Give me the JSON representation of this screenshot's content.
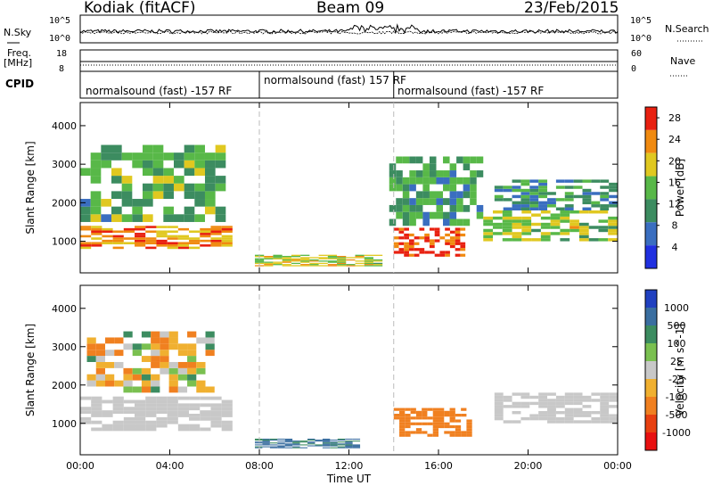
{
  "header": {
    "station": "Kodiak (fitACF)",
    "beam": "Beam 09",
    "date": "23/Feb/2015"
  },
  "strip_panels": {
    "nsky_label": "N.Sky",
    "nsearch_label": "N.Search",
    "freq_label_1": "Freq.",
    "freq_label_2": "[MHz]",
    "nave_label": "Nave",
    "cpid_label": "CPID",
    "nsky_ticks": [
      "10^5",
      "10^0"
    ],
    "nsearch_ticks": [
      "10^5",
      "10^0"
    ],
    "freq_ticks": [
      "18",
      "8"
    ],
    "nave_ticks": [
      "60",
      "0"
    ],
    "cpid_segments": [
      {
        "start_hour": 0,
        "end_hour": 8,
        "text": "normalsound (fast) -157 RF"
      },
      {
        "start_hour": 8,
        "end_hour": 14,
        "text": "normalsound (fast) 157 RF"
      },
      {
        "start_hour": 14,
        "end_hour": 24,
        "text": "normalsound (fast) -157 RF"
      }
    ]
  },
  "chart_data": [
    {
      "type": "heatmap",
      "title": "",
      "xlabel": "Time UT",
      "ylabel": "Slant Range [km]",
      "xlim": [
        0,
        24
      ],
      "ylim": [
        180,
        4600
      ],
      "x_ticks": [
        "00:00",
        "04:00",
        "08:00",
        "12:00",
        "16:00",
        "20:00",
        "00:00"
      ],
      "y_ticks": [
        1000,
        2000,
        3000,
        4000
      ],
      "colorbar_label": "Power [dB]",
      "colorbar_ticks": [
        4,
        8,
        12,
        16,
        20,
        24,
        28
      ],
      "colorbar_range": [
        0,
        30
      ],
      "colors": [
        "#2030e0",
        "#3a6ec0",
        "#3c8c60",
        "#58b848",
        "#e0c820",
        "#f08a10",
        "#e82010"
      ],
      "regions": [
        {
          "name": "morning-band",
          "t0": 0.0,
          "t1": 6.8,
          "r0": 800,
          "r1": 1400,
          "level": 0.75
        },
        {
          "name": "morning-upper",
          "t0": 0.0,
          "t1": 6.5,
          "r0": 1500,
          "r1": 3500,
          "level": 0.45
        },
        {
          "name": "low-evening",
          "t0": 7.8,
          "t1": 13.5,
          "r0": 350,
          "r1": 650,
          "level": 0.6
        },
        {
          "name": "afternoon-core",
          "t0": 14.0,
          "t1": 17.2,
          "r0": 600,
          "r1": 1350,
          "level": 0.9
        },
        {
          "name": "afternoon-upper",
          "t0": 13.8,
          "t1": 18.0,
          "r0": 1400,
          "r1": 3200,
          "level": 0.4
        },
        {
          "name": "evening-band",
          "t0": 18.0,
          "t1": 24.0,
          "r0": 1000,
          "r1": 1800,
          "level": 0.55
        },
        {
          "name": "evening-upper",
          "t0": 18.5,
          "t1": 24.0,
          "r0": 1800,
          "r1": 2600,
          "level": 0.35
        }
      ]
    },
    {
      "type": "heatmap",
      "title": "",
      "xlabel": "Time UT",
      "ylabel": "Slant Range [km]",
      "xlim": [
        0,
        24
      ],
      "ylim": [
        180,
        4600
      ],
      "x_ticks": [
        "00:00",
        "04:00",
        "08:00",
        "12:00",
        "16:00",
        "20:00",
        "00:00"
      ],
      "y_ticks": [
        1000,
        2000,
        3000,
        4000
      ],
      "colorbar_label": "Velocity [m s^-1]",
      "colorbar_ticks": [
        1000,
        500,
        100,
        25,
        -25,
        -100,
        -500,
        -1000
      ],
      "colors": [
        "#2040c0",
        "#3a6ea0",
        "#3c8c60",
        "#7ac050",
        "#c8c8c8",
        "#f0b030",
        "#f08020",
        "#e84010",
        "#e81010"
      ],
      "regions": [
        {
          "name": "ground-scatter-morning",
          "t0": 0.0,
          "t1": 6.8,
          "r0": 800,
          "r1": 1700,
          "velocity": 0
        },
        {
          "name": "ground-scatter-evening",
          "t0": 18.5,
          "t1": 24.0,
          "r0": 1000,
          "r1": 1800,
          "velocity": 0
        },
        {
          "name": "afternoon-negative",
          "t0": 14.0,
          "t1": 17.5,
          "r0": 650,
          "r1": 1400,
          "velocity": -300
        },
        {
          "name": "low-positive",
          "t0": 7.8,
          "t1": 12.5,
          "r0": 350,
          "r1": 600,
          "velocity": 150
        },
        {
          "name": "morning-scatter",
          "t0": 0.3,
          "t1": 6.0,
          "r0": 1800,
          "r1": 3400,
          "velocity": -60
        }
      ]
    }
  ]
}
